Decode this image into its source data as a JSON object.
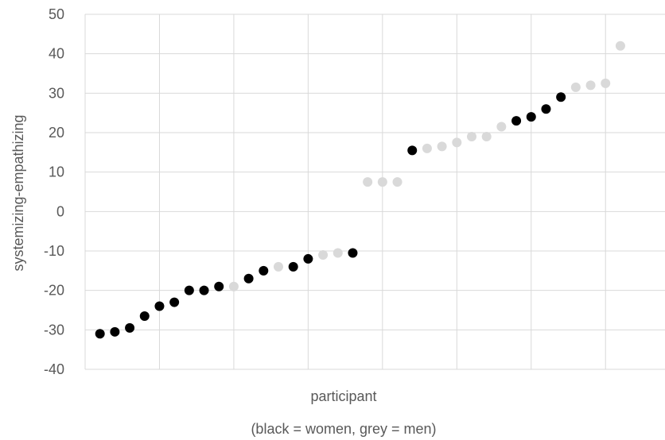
{
  "chart_data": {
    "type": "scatter",
    "title": "",
    "xlabel": "participant",
    "xlabel_note": "(black = women, grey = men)",
    "ylabel": "systemizing-empathizing",
    "ylim": [
      -40,
      50
    ],
    "yticks": [
      -40,
      -30,
      -20,
      -10,
      0,
      10,
      20,
      30,
      40,
      50
    ],
    "xlim": [
      0,
      39
    ],
    "x_gridlines": [
      5,
      10,
      15,
      20,
      25,
      30,
      35
    ],
    "grid": "on",
    "legend": "none",
    "colors": {
      "women": "#000000",
      "men": "#d9d9d9",
      "grid": "#d9d9d9",
      "text": "#595959"
    },
    "series": [
      {
        "name": "women",
        "x": [
          1,
          2,
          3,
          4,
          5,
          6,
          7,
          8,
          9,
          11,
          12,
          14,
          15,
          18,
          22,
          29,
          30,
          31,
          32
        ],
        "y": [
          -31,
          -30.5,
          -29.5,
          -26.5,
          -24,
          -23,
          -20,
          -20,
          -19,
          -17,
          -15,
          -14,
          -12,
          -10.5,
          15.5,
          23,
          24,
          26,
          29
        ]
      },
      {
        "name": "men",
        "x": [
          10,
          13,
          16,
          17,
          19,
          20,
          21,
          23,
          24,
          25,
          26,
          27,
          28,
          33,
          34,
          35,
          36
        ],
        "y": [
          -19,
          -14,
          -11,
          -10.5,
          7.5,
          7.5,
          7.5,
          16,
          16.5,
          17.5,
          19,
          19,
          21.5,
          31.5,
          32,
          32.5,
          42
        ]
      }
    ]
  }
}
